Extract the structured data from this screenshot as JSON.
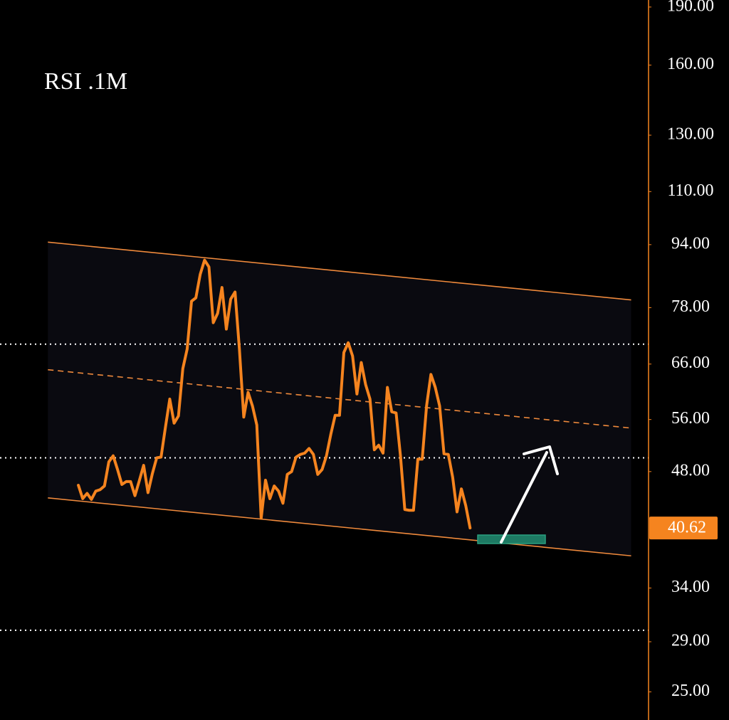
{
  "chart_data": {
    "type": "line",
    "title": "RSI .1M",
    "log_scale": true,
    "xlim": [
      -18,
      131
    ],
    "ylim": [
      23,
      194
    ],
    "yticks": [
      {
        "value": 190,
        "label": "190.00"
      },
      {
        "value": 160,
        "label": "160.00"
      },
      {
        "value": 130,
        "label": "130.00"
      },
      {
        "value": 110,
        "label": "110.00"
      },
      {
        "value": 94,
        "label": "94.00"
      },
      {
        "value": 78,
        "label": "78.00"
      },
      {
        "value": 66,
        "label": "66.00"
      },
      {
        "value": 56,
        "label": "56.00"
      },
      {
        "value": 48,
        "label": "48.00"
      },
      {
        "value": 34,
        "label": "34.00"
      },
      {
        "value": 29,
        "label": "29.00"
      },
      {
        "value": 25,
        "label": "25.00"
      }
    ],
    "hlines": [
      70,
      50,
      30
    ],
    "axis_color": "#f5841f",
    "series": [
      {
        "color": "#f5841f",
        "values": [
          46.1,
          44.3,
          45.0,
          44.2,
          45.3,
          45.5,
          46.0,
          49.4,
          50.3,
          48.3,
          46.2,
          46.6,
          46.6,
          44.7,
          46.7,
          48.9,
          45.1,
          47.7,
          50.0,
          50.1,
          54.7,
          59.5,
          55.4,
          56.6,
          65.1,
          69.0,
          79.5,
          80.3,
          86.1,
          89.8,
          88.0,
          74.6,
          76.7,
          82.8,
          73.2,
          80.0,
          81.7,
          69.0,
          56.4,
          60.7,
          58.3,
          55.1,
          41.8,
          46.8,
          44.3,
          46.0,
          45.3,
          43.7,
          47.6,
          48.0,
          50.1,
          50.5,
          50.7,
          51.4,
          50.5,
          47.6,
          48.3,
          50.3,
          53.6,
          56.7,
          56.7,
          68.3,
          70.3,
          67.6,
          60.4,
          66.3,
          62.1,
          59.5,
          51.2,
          51.9,
          50.7,
          61.6,
          57.3,
          57.1,
          50.3,
          42.9,
          42.8,
          42.8,
          49.8,
          49.8,
          58.3,
          64.0,
          61.6,
          58.3,
          50.6,
          50.5,
          47.2,
          42.6,
          45.6,
          43.4,
          40.62
        ]
      }
    ],
    "channel": {
      "color": "#f08a3c",
      "x": [
        -7,
        127
      ],
      "upper": [
        94.7,
        79.8
      ],
      "middle": [
        64.9,
        54.6
      ],
      "lower": [
        44.4,
        37.4
      ]
    }
  }
}
